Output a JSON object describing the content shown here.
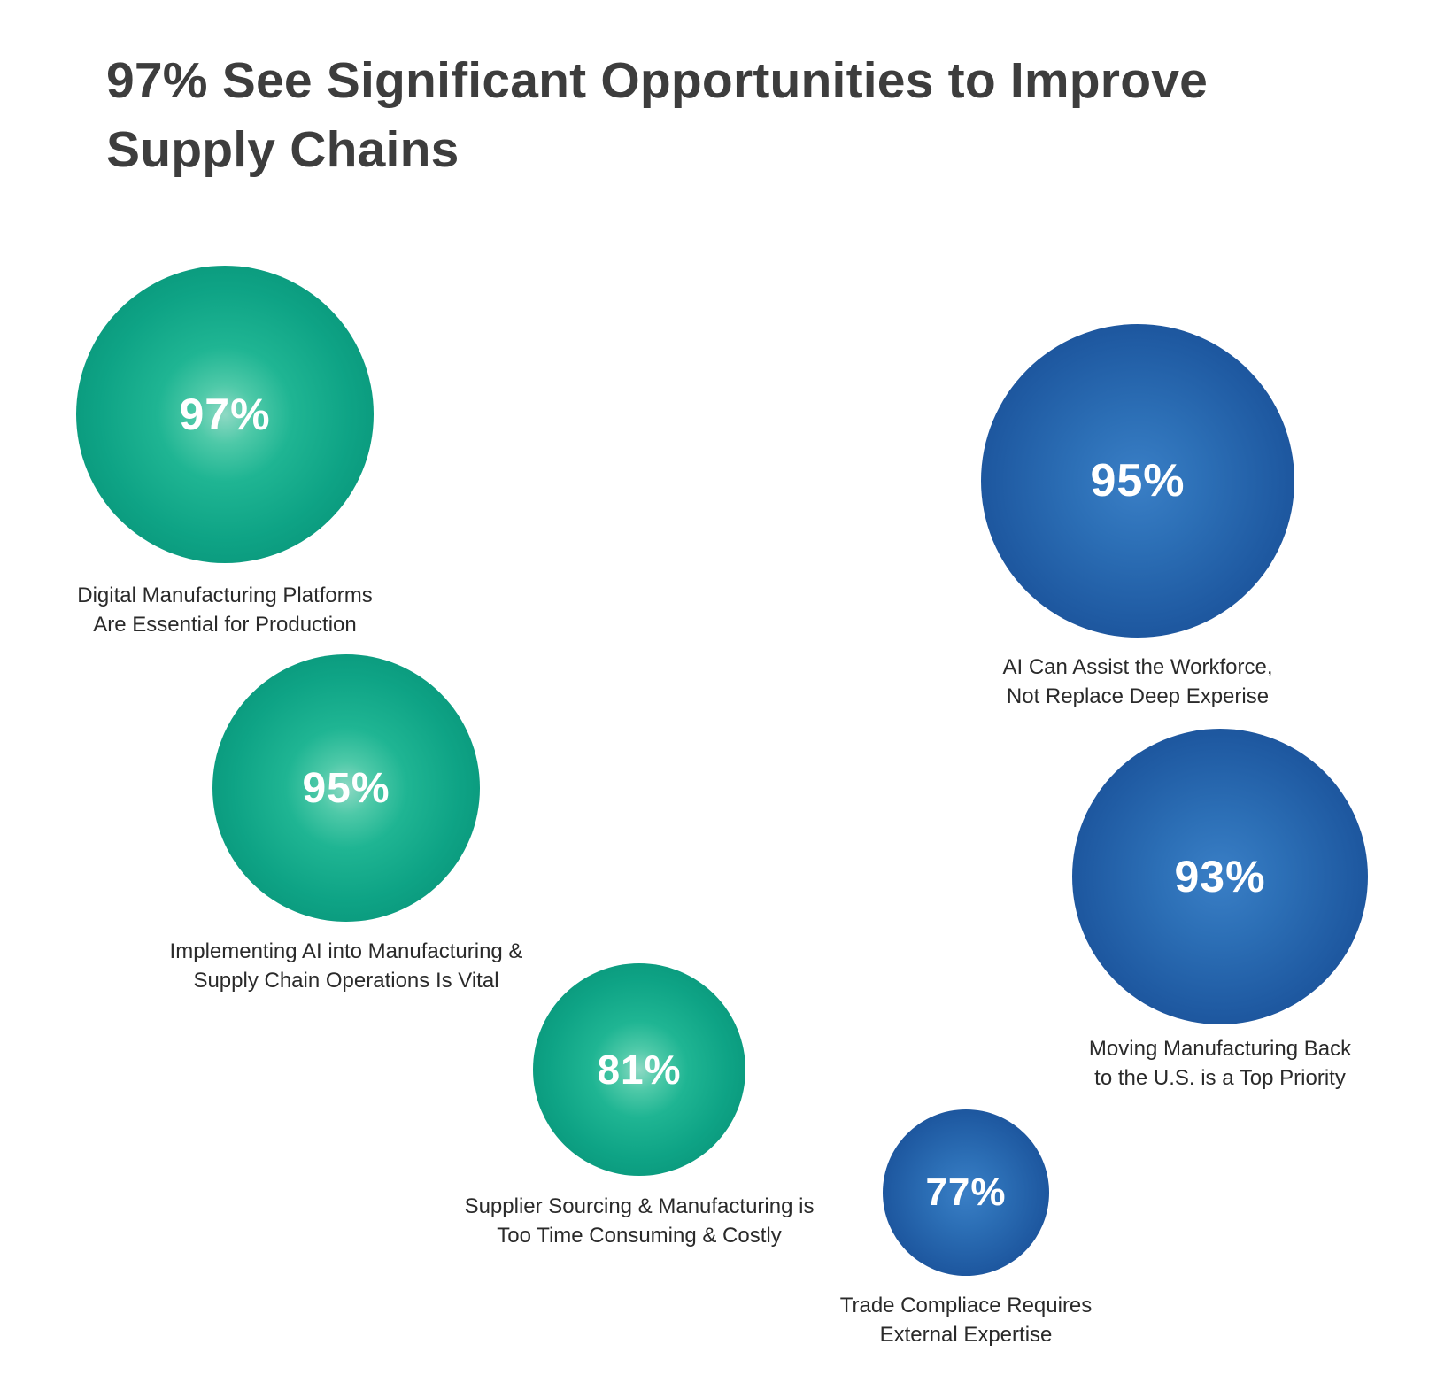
{
  "title": "97% See Significant Opportunities to Improve Supply Chains",
  "colors": {
    "green_series": "#1fb593",
    "blue_series": "#1f5aa2",
    "title_text": "#3d3d3d",
    "label_text": "#2a2a2a"
  },
  "chart_data": {
    "type": "bubble",
    "title": "97% See Significant Opportunities to Improve Supply Chains",
    "grid": false,
    "legend": "none",
    "items": [
      {
        "value": 97,
        "value_label": "97%",
        "label_lines": [
          "Digital Manufacturing Platforms",
          "Are Essential for Production"
        ],
        "color": "green"
      },
      {
        "value": 95,
        "value_label": "95%",
        "label_lines": [
          "Implementing AI into Manufacturing &",
          "Supply Chain Operations Is Vital"
        ],
        "color": "green"
      },
      {
        "value": 81,
        "value_label": "81%",
        "label_lines": [
          "Supplier Sourcing & Manufacturing is",
          "Too Time Consuming & Costly"
        ],
        "color": "green"
      },
      {
        "value": 95,
        "value_label": "95%",
        "label_lines": [
          "AI Can Assist the Workforce,",
          "Not Replace Deep Experise"
        ],
        "color": "blue"
      },
      {
        "value": 93,
        "value_label": "93%",
        "label_lines": [
          "Moving Manufacturing Back",
          "to the U.S. is a Top Priority"
        ],
        "color": "blue"
      },
      {
        "value": 77,
        "value_label": "77%",
        "label_lines": [
          "Trade Compliace Requires",
          "External Expertise"
        ],
        "color": "blue"
      }
    ]
  }
}
